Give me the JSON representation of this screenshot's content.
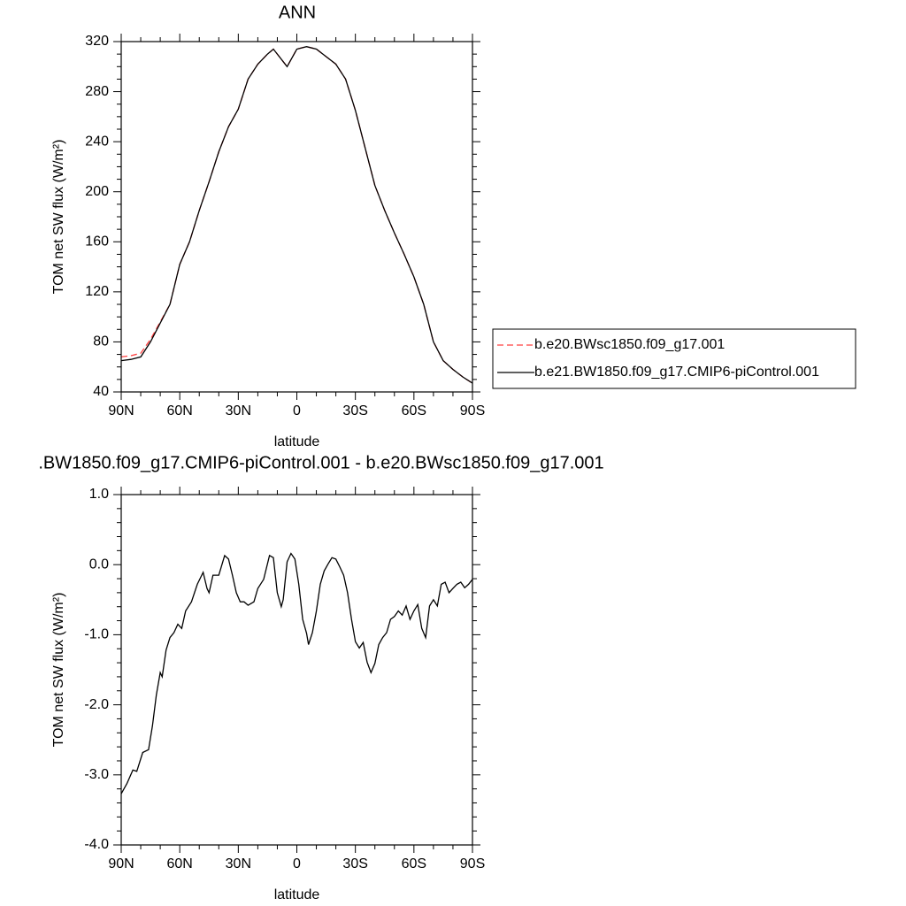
{
  "chart_data": [
    {
      "type": "line",
      "title": "ANN",
      "xlabel": "latitude",
      "ylabel": "TOM net SW flux (W/m²)",
      "xlim": [
        90,
        -90
      ],
      "ylim": [
        40,
        320
      ],
      "xticks": [
        {
          "value": 90,
          "label": "90N"
        },
        {
          "value": 60,
          "label": "60N"
        },
        {
          "value": 30,
          "label": "30N"
        },
        {
          "value": 0,
          "label": "0"
        },
        {
          "value": -30,
          "label": "30S"
        },
        {
          "value": -60,
          "label": "60S"
        },
        {
          "value": -90,
          "label": "90S"
        }
      ],
      "yticks": [
        40,
        80,
        120,
        160,
        200,
        240,
        280,
        320
      ],
      "legend": "right",
      "x": [
        90,
        85,
        80,
        75,
        70,
        65,
        60,
        55,
        50,
        45,
        40,
        35,
        30,
        25,
        20,
        15,
        12,
        10,
        5,
        0,
        -5,
        -10,
        -15,
        -20,
        -25,
        -30,
        -35,
        -40,
        -45,
        -50,
        -55,
        -60,
        -65,
        -70,
        -75,
        -80,
        -85,
        -90
      ],
      "series": [
        {
          "name": "b.e20.BWsc1850.f09_g17.001",
          "color": "#ff4040",
          "line_style": "dashed",
          "values": [
            68,
            69,
            71,
            82,
            96,
            110,
            142,
            160,
            185,
            208,
            232,
            252,
            266,
            290,
            302,
            310,
            314,
            310,
            300,
            314,
            316,
            314,
            308,
            302,
            290,
            265,
            235,
            205,
            185,
            167,
            150,
            132,
            110,
            80,
            65,
            58,
            52,
            47
          ]
        },
        {
          "name": "b.e21.BW1850.f09_g17.CMIP6-piControl.001",
          "color": "#000000",
          "line_style": "solid",
          "values": [
            65,
            66,
            68,
            80,
            95,
            110,
            142,
            160,
            185,
            208,
            232,
            252,
            266,
            290,
            302,
            310,
            314,
            310,
            300,
            314,
            316,
            314,
            308,
            302,
            290,
            265,
            235,
            205,
            185,
            167,
            150,
            132,
            110,
            80,
            65,
            58,
            52,
            47
          ]
        }
      ]
    },
    {
      "type": "line",
      "title": ".BW1850.f09_g17.CMIP6-piControl.001 - b.e20.BWsc1850.f09_g17.001",
      "xlabel": "latitude",
      "ylabel": "TOM net SW flux (W/m²)",
      "xlim": [
        90,
        -90
      ],
      "ylim": [
        -4,
        1
      ],
      "xticks": [
        {
          "value": 90,
          "label": "90N"
        },
        {
          "value": 60,
          "label": "60N"
        },
        {
          "value": 30,
          "label": "30N"
        },
        {
          "value": 0,
          "label": "0"
        },
        {
          "value": -30,
          "label": "30S"
        },
        {
          "value": -60,
          "label": "60S"
        },
        {
          "value": -90,
          "label": "90S"
        }
      ],
      "yticks": [
        {
          "value": -4,
          "label": "-4.0"
        },
        {
          "value": -3,
          "label": "-3.0"
        },
        {
          "value": -2,
          "label": "-2.0"
        },
        {
          "value": -1,
          "label": "-1.0"
        },
        {
          "value": 0,
          "label": "0.0"
        },
        {
          "value": 1,
          "label": "1.0"
        }
      ],
      "color": "#000000",
      "x": [
        90,
        87,
        84,
        82,
        79,
        76,
        74,
        72,
        70,
        69,
        67,
        65,
        63,
        61,
        59,
        57,
        54,
        51,
        48,
        46,
        45,
        43,
        40,
        37,
        35,
        33,
        31,
        29,
        27,
        25,
        22,
        20,
        17,
        14,
        12,
        10,
        8,
        7,
        5,
        3,
        1,
        -1,
        -3,
        -5,
        -6,
        -8,
        -10,
        -12,
        -14,
        -16,
        -18,
        -20,
        -22,
        -24,
        -26,
        -28,
        -30,
        -32,
        -34,
        -36,
        -38,
        -40,
        -42,
        -44,
        -46,
        -48,
        -50,
        -52,
        -54,
        -56,
        -58,
        -60,
        -62,
        -64,
        -66,
        -68,
        -70,
        -72,
        -74,
        -76,
        -78,
        -80,
        -82,
        -84,
        -86,
        -88,
        -90
      ],
      "values": [
        -3.27,
        -3.12,
        -2.93,
        -2.95,
        -2.68,
        -2.64,
        -2.3,
        -1.86,
        -1.54,
        -1.6,
        -1.22,
        -1.04,
        -0.97,
        -0.85,
        -0.91,
        -0.66,
        -0.53,
        -0.28,
        -0.11,
        -0.34,
        -0.4,
        -0.15,
        -0.15,
        0.13,
        0.08,
        -0.15,
        -0.4,
        -0.53,
        -0.53,
        -0.58,
        -0.53,
        -0.34,
        -0.21,
        0.13,
        0.1,
        -0.4,
        -0.6,
        -0.5,
        0.04,
        0.16,
        0.08,
        -0.28,
        -0.78,
        -0.98,
        -1.14,
        -0.97,
        -0.66,
        -0.28,
        -0.09,
        0.01,
        0.1,
        0.08,
        -0.03,
        -0.15,
        -0.4,
        -0.78,
        -1.1,
        -1.19,
        -1.11,
        -1.39,
        -1.54,
        -1.41,
        -1.14,
        -1.04,
        -0.97,
        -0.78,
        -0.74,
        -0.66,
        -0.72,
        -0.59,
        -0.78,
        -0.66,
        -0.57,
        -0.91,
        -1.04,
        -0.59,
        -0.5,
        -0.59,
        -0.28,
        -0.25,
        -0.4,
        -0.34,
        -0.28,
        -0.25,
        -0.33,
        -0.28,
        -0.21
      ]
    }
  ]
}
